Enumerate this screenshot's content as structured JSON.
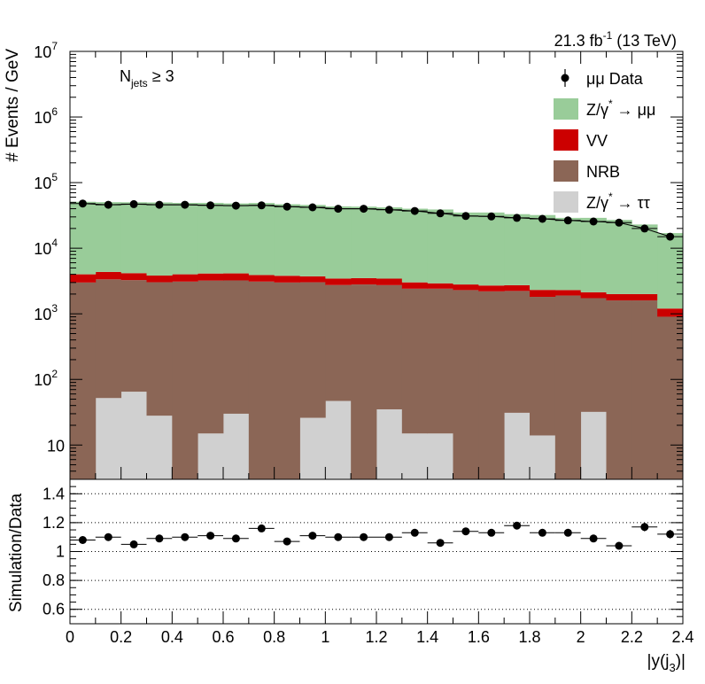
{
  "chart_data": [
    {
      "type": "bar",
      "stacked": true,
      "yscale": "log",
      "ylabel": "# Events / GeV",
      "ylim": [
        3,
        10000000
      ],
      "x_edges": [
        0,
        0.1,
        0.2,
        0.3,
        0.4,
        0.5,
        0.6,
        0.7,
        0.8,
        0.9,
        1.0,
        1.1,
        1.2,
        1.3,
        1.4,
        1.5,
        1.6,
        1.7,
        1.8,
        1.9,
        2.0,
        2.1,
        2.2,
        2.3,
        2.4
      ],
      "xlim": [
        0,
        2.4
      ],
      "y_ticks": [
        {
          "value": 10,
          "label": "10",
          "exp": ""
        },
        {
          "value": 100,
          "label": "10",
          "exp": "2"
        },
        {
          "value": 1000,
          "label": "10",
          "exp": "3"
        },
        {
          "value": 10000,
          "label": "10",
          "exp": "4"
        },
        {
          "value": 100000,
          "label": "10",
          "exp": "5"
        },
        {
          "value": 1000000,
          "label": "10",
          "exp": "6"
        },
        {
          "value": 10000000,
          "label": "10",
          "exp": "7"
        }
      ],
      "series": [
        {
          "name": "Z/γ* → ττ",
          "color": "#d0d0d0",
          "values": [
            0,
            52,
            65,
            28,
            0,
            15,
            30,
            0,
            0,
            26,
            47,
            0,
            35,
            15,
            15,
            0,
            0,
            31,
            14,
            0,
            32,
            0,
            0,
            3
          ]
        },
        {
          "name": "NRB",
          "color": "#8b6656",
          "values": [
            3000,
            3300,
            3200,
            3000,
            3100,
            3200,
            3200,
            3100,
            3000,
            3000,
            2700,
            2800,
            2700,
            2400,
            2400,
            2300,
            2200,
            2200,
            1800,
            1900,
            1700,
            1600,
            1600,
            900
          ]
        },
        {
          "name": "VV",
          "color": "#cc0000",
          "values": [
            1000,
            1000,
            900,
            800,
            900,
            900,
            900,
            800,
            800,
            700,
            700,
            700,
            700,
            600,
            500,
            500,
            500,
            500,
            500,
            400,
            400,
            400,
            400,
            300
          ]
        },
        {
          "name": "Z/γ* → μμ",
          "color": "#99cc99",
          "values": [
            47000,
            46000,
            46000,
            46000,
            45000,
            45000,
            44000,
            45000,
            43000,
            42000,
            40000,
            39500,
            38500,
            37000,
            36000,
            32200,
            32300,
            30300,
            29700,
            26700,
            26900,
            25000,
            21000,
            15800
          ]
        }
      ],
      "data_series": {
        "name": "μμ Data",
        "values": [
          48000,
          46000,
          47000,
          46000,
          46000,
          45000,
          44500,
          45000,
          43000,
          42000,
          40000,
          40000,
          38500,
          37000,
          34000,
          31000,
          30500,
          29000,
          28000,
          26500,
          25500,
          24500,
          20000,
          15000
        ]
      },
      "legend": [
        {
          "label": "μμ Data",
          "sup": "",
          "kind": "marker"
        },
        {
          "label": "Z/γ",
          "sup": "*",
          "suffix": " → μμ",
          "kind": "box",
          "color": "#99cc99"
        },
        {
          "label": "VV",
          "sup": "",
          "kind": "box",
          "color": "#cc0000"
        },
        {
          "label": "NRB",
          "sup": "",
          "kind": "box",
          "color": "#8b6656"
        },
        {
          "label": "Z/γ",
          "sup": "*",
          "suffix": " → ττ",
          "kind": "box",
          "color": "#d0d0d0"
        }
      ],
      "legend_position": "top-right",
      "annotation": {
        "main": "N",
        "sub": "jets",
        "rest": " ≥ 3"
      },
      "lumi": {
        "main": "21.3 fb",
        "sup": "-1",
        "rest": " (13 TeV)"
      }
    },
    {
      "type": "scatter",
      "ylabel": "Simulation/Data",
      "xlabel": {
        "main": "|y(j",
        "sub": "3",
        "rest": ")|"
      },
      "xlim": [
        0,
        2.4
      ],
      "ylim": [
        0.5,
        1.5
      ],
      "x_ticks": [
        "0",
        "0.2",
        "0.4",
        "0.6",
        "0.8",
        "1",
        "1.2",
        "1.4",
        "1.6",
        "1.8",
        "2",
        "2.2",
        "2.4"
      ],
      "x_tick_values": [
        0,
        0.2,
        0.4,
        0.6,
        0.8,
        1.0,
        1.2,
        1.4,
        1.6,
        1.8,
        2.0,
        2.2,
        2.4
      ],
      "y_ticks": [
        "0.6",
        "0.8",
        "1",
        "1.2",
        "1.4"
      ],
      "y_tick_values": [
        0.6,
        0.8,
        1.0,
        1.2,
        1.4
      ],
      "grid_lines_y": [
        0.6,
        0.8,
        1.0,
        1.2,
        1.4
      ],
      "grid": "dotted horizontal",
      "x": [
        0.05,
        0.15,
        0.25,
        0.35,
        0.45,
        0.55,
        0.65,
        0.75,
        0.85,
        0.95,
        1.05,
        1.15,
        1.25,
        1.35,
        1.45,
        1.55,
        1.65,
        1.75,
        1.85,
        1.95,
        2.05,
        2.15,
        2.25,
        2.35
      ],
      "values": [
        1.08,
        1.1,
        1.05,
        1.09,
        1.1,
        1.11,
        1.09,
        1.16,
        1.07,
        1.11,
        1.1,
        1.1,
        1.1,
        1.13,
        1.06,
        1.14,
        1.13,
        1.18,
        1.13,
        1.13,
        1.09,
        1.04,
        1.17,
        1.12
      ],
      "errors": [
        0.02,
        0.02,
        0.02,
        0.02,
        0.02,
        0.02,
        0.02,
        0.02,
        0.02,
        0.02,
        0.02,
        0.02,
        0.02,
        0.02,
        0.02,
        0.02,
        0.02,
        0.02,
        0.02,
        0.02,
        0.02,
        0.02,
        0.03,
        0.03
      ]
    }
  ]
}
